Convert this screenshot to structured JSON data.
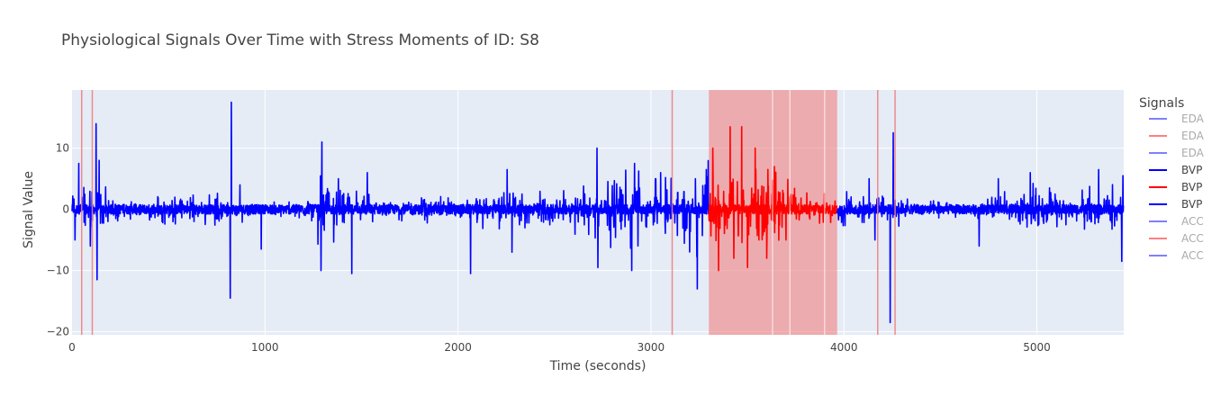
{
  "chart_data": {
    "type": "line",
    "title": "Physiological Signals Over Time with Stress Moments of ID: S8",
    "xlabel": "Time (seconds)",
    "ylabel": "Signal Value",
    "xlim": [
      0,
      5450
    ],
    "ylim": [
      -20.5,
      19.5
    ],
    "x_ticks": [
      0,
      1000,
      2000,
      3000,
      4000,
      5000
    ],
    "x_tick_labels": [
      "0",
      "1000",
      "2000",
      "3000",
      "4000",
      "5000"
    ],
    "y_ticks": [
      -20,
      -10,
      0,
      10
    ],
    "y_tick_labels": [
      "−20",
      "−10",
      "0",
      "10"
    ],
    "grid": true,
    "legend": {
      "title": "Signals",
      "placement": "right",
      "entries": [
        {
          "label": "EDA",
          "color": "#0000ff",
          "faded": true
        },
        {
          "label": "EDA",
          "color": "#ff0000",
          "faded": true
        },
        {
          "label": "EDA",
          "color": "#0000ff",
          "faded": true
        },
        {
          "label": "BVP",
          "color": "#0000ff",
          "faded": false
        },
        {
          "label": "BVP",
          "color": "#ff0000",
          "faded": false
        },
        {
          "label": "BVP",
          "color": "#0000ff",
          "faded": false
        },
        {
          "label": "ACC",
          "color": "#0000ff",
          "faded": true
        },
        {
          "label": "ACC",
          "color": "#ff0000",
          "faded": true
        },
        {
          "label": "ACC",
          "color": "#0000ff",
          "faded": true
        }
      ]
    },
    "stress_lines": [
      50,
      105,
      3110,
      4175,
      4265
    ],
    "stress_region": [
      3300,
      3965
    ],
    "stress_region_gaps": [
      3630,
      3720,
      3900
    ],
    "series": [
      {
        "name": "BVP",
        "color": "#0000ff",
        "segment": [
          0,
          3300
        ],
        "burst_amplitude": [
          [
            0,
            5
          ],
          [
            60,
            7.5
          ],
          [
            140,
            6
          ],
          [
            200,
            2
          ],
          [
            450,
            2.5
          ],
          [
            800,
            3
          ],
          [
            1000,
            1
          ],
          [
            1200,
            2
          ],
          [
            1280,
            6
          ],
          [
            1420,
            5
          ],
          [
            1600,
            2
          ],
          [
            2000,
            2.5
          ],
          [
            2200,
            4
          ],
          [
            2400,
            3
          ],
          [
            2600,
            4
          ],
          [
            2750,
            6
          ],
          [
            2900,
            7
          ],
          [
            3000,
            5
          ],
          [
            3150,
            6
          ],
          [
            3250,
            8
          ],
          [
            3300,
            8
          ]
        ],
        "spikes": [
          [
            15,
            -5
          ],
          [
            35,
            7.5
          ],
          [
            95,
            -6
          ],
          [
            125,
            14
          ],
          [
            130,
            -11.5
          ],
          [
            140,
            8
          ],
          [
            825,
            17.5
          ],
          [
            820,
            -14.5
          ],
          [
            870,
            4
          ],
          [
            980,
            -6.5
          ],
          [
            1295,
            11
          ],
          [
            1290,
            -10
          ],
          [
            1380,
            5
          ],
          [
            1450,
            -10.5
          ],
          [
            1530,
            6
          ],
          [
            2065,
            -10.5
          ],
          [
            2255,
            6.5
          ],
          [
            2280,
            -7
          ],
          [
            2720,
            10
          ],
          [
            2725,
            -9.5
          ],
          [
            2900,
            -10
          ],
          [
            2915,
            7.5
          ],
          [
            3050,
            6
          ],
          [
            3230,
            5
          ],
          [
            3240,
            -13
          ]
        ]
      },
      {
        "name": "BVP",
        "color": "#ff0000",
        "segment": [
          3300,
          3965
        ],
        "burst_amplitude": [
          [
            3300,
            5
          ],
          [
            3400,
            9
          ],
          [
            3470,
            10
          ],
          [
            3550,
            8
          ],
          [
            3650,
            7
          ],
          [
            3750,
            4
          ],
          [
            3850,
            3
          ],
          [
            3965,
            2.5
          ]
        ],
        "spikes": [
          [
            3320,
            10
          ],
          [
            3350,
            -10
          ],
          [
            3410,
            13.5
          ],
          [
            3430,
            -8
          ],
          [
            3470,
            13.5
          ],
          [
            3500,
            -9.5
          ],
          [
            3540,
            10
          ],
          [
            3600,
            -8
          ],
          [
            3640,
            7
          ],
          [
            3700,
            -5
          ]
        ]
      },
      {
        "name": "BVP",
        "color": "#0000ff",
        "segment": [
          3965,
          5450
        ],
        "burst_amplitude": [
          [
            3965,
            4
          ],
          [
            4050,
            3
          ],
          [
            4150,
            4
          ],
          [
            4270,
            3
          ],
          [
            4400,
            1.5
          ],
          [
            4700,
            1.5
          ],
          [
            4800,
            3
          ],
          [
            4900,
            3
          ],
          [
            5000,
            5
          ],
          [
            5100,
            3
          ],
          [
            5300,
            4
          ],
          [
            5450,
            6
          ]
        ],
        "spikes": [
          [
            4130,
            5
          ],
          [
            4160,
            -5
          ],
          [
            4240,
            -18.5
          ],
          [
            4255,
            12.5
          ],
          [
            4700,
            -6
          ],
          [
            4800,
            5
          ],
          [
            4965,
            6
          ],
          [
            5320,
            6.5
          ],
          [
            5440,
            -8.5
          ],
          [
            5445,
            5.5
          ]
        ]
      }
    ]
  }
}
